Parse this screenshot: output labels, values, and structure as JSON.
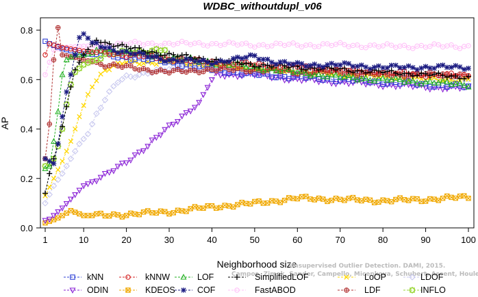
{
  "chart_data": {
    "type": "line",
    "title": "WDBC_withoutdupl_v06",
    "xlabel": "Neighborhood size",
    "ylabel": "AP",
    "xlim": [
      1,
      100
    ],
    "ylim": [
      0,
      0.85
    ],
    "xticks": [
      1,
      10,
      20,
      30,
      40,
      50,
      60,
      70,
      80,
      90,
      100
    ],
    "yticks": [
      0.0,
      0.2,
      0.4,
      0.6,
      0.8
    ],
    "grid": false,
    "legend_position": "bottom",
    "series": [
      {
        "name": "kNN",
        "color": "#2c3fd6",
        "marker": "square",
        "kmax": 100,
        "points": [
          [
            1,
            0.755
          ],
          [
            2,
            0.745
          ],
          [
            5,
            0.725
          ],
          [
            10,
            0.705
          ],
          [
            20,
            0.69
          ],
          [
            30,
            0.67
          ],
          [
            40,
            0.64
          ],
          [
            50,
            0.62
          ],
          [
            60,
            0.61
          ],
          [
            70,
            0.6
          ],
          [
            80,
            0.59
          ],
          [
            90,
            0.58
          ],
          [
            100,
            0.57
          ]
        ]
      },
      {
        "name": "kNNW",
        "color": "#d42020",
        "marker": "circle",
        "kmax": 100,
        "points": [
          [
            1,
            0.7
          ],
          [
            2,
            0.745
          ],
          [
            5,
            0.73
          ],
          [
            10,
            0.715
          ],
          [
            20,
            0.7
          ],
          [
            30,
            0.685
          ],
          [
            40,
            0.67
          ],
          [
            50,
            0.66
          ],
          [
            60,
            0.65
          ],
          [
            70,
            0.64
          ],
          [
            80,
            0.63
          ],
          [
            90,
            0.62
          ],
          [
            100,
            0.615
          ]
        ]
      },
      {
        "name": "LOF",
        "color": "#22b022",
        "marker": "triangle-up",
        "kmax": 100,
        "points": [
          [
            1,
            0.24
          ],
          [
            2,
            0.25
          ],
          [
            3,
            0.35
          ],
          [
            4,
            0.47
          ],
          [
            5,
            0.62
          ],
          [
            6,
            0.68
          ],
          [
            8,
            0.7
          ],
          [
            10,
            0.7
          ],
          [
            15,
            0.72
          ],
          [
            20,
            0.71
          ],
          [
            30,
            0.69
          ],
          [
            40,
            0.67
          ],
          [
            50,
            0.65
          ],
          [
            60,
            0.63
          ],
          [
            70,
            0.61
          ],
          [
            80,
            0.6
          ],
          [
            90,
            0.59
          ],
          [
            100,
            0.58
          ]
        ]
      },
      {
        "name": "SimplifiedLOF",
        "color": "#000000",
        "marker": "plus",
        "kmax": 100,
        "points": [
          [
            1,
            0.14
          ],
          [
            2,
            0.22
          ],
          [
            3,
            0.28
          ],
          [
            4,
            0.34
          ],
          [
            5,
            0.41
          ],
          [
            6,
            0.49
          ],
          [
            7,
            0.57
          ],
          [
            8,
            0.64
          ],
          [
            10,
            0.7
          ],
          [
            13,
            0.765
          ],
          [
            15,
            0.75
          ],
          [
            20,
            0.73
          ],
          [
            30,
            0.7
          ],
          [
            40,
            0.68
          ],
          [
            50,
            0.66
          ],
          [
            60,
            0.65
          ],
          [
            70,
            0.64
          ],
          [
            80,
            0.63
          ],
          [
            90,
            0.62
          ],
          [
            100,
            0.61
          ]
        ]
      },
      {
        "name": "LoOP",
        "color": "#ffd700",
        "marker": "x",
        "kmax": 100,
        "points": [
          [
            1,
            0.13
          ],
          [
            3,
            0.2
          ],
          [
            5,
            0.27
          ],
          [
            7,
            0.35
          ],
          [
            9,
            0.45
          ],
          [
            11,
            0.54
          ],
          [
            13,
            0.6
          ],
          [
            15,
            0.64
          ],
          [
            20,
            0.67
          ],
          [
            30,
            0.67
          ],
          [
            40,
            0.66
          ],
          [
            50,
            0.64
          ],
          [
            60,
            0.63
          ],
          [
            70,
            0.62
          ],
          [
            80,
            0.61
          ],
          [
            90,
            0.6
          ],
          [
            100,
            0.6
          ]
        ]
      },
      {
        "name": "LDOF",
        "color": "#c8c8ef",
        "marker": "diamond",
        "kmax": 100,
        "points": [
          [
            1,
            0.1
          ],
          [
            3,
            0.17
          ],
          [
            5,
            0.22
          ],
          [
            7,
            0.28
          ],
          [
            9,
            0.34
          ],
          [
            11,
            0.38
          ],
          [
            13,
            0.46
          ],
          [
            15,
            0.52
          ],
          [
            18,
            0.59
          ],
          [
            20,
            0.61
          ],
          [
            25,
            0.63
          ],
          [
            30,
            0.64
          ],
          [
            40,
            0.65
          ],
          [
            50,
            0.65
          ],
          [
            60,
            0.64
          ],
          [
            70,
            0.63
          ],
          [
            80,
            0.62
          ],
          [
            90,
            0.61
          ],
          [
            100,
            0.6
          ]
        ]
      },
      {
        "name": "ODIN",
        "color": "#8a22d6",
        "marker": "triangle-down",
        "kmax": 100,
        "points": [
          [
            1,
            0.03
          ],
          [
            2,
            0.035
          ],
          [
            5,
            0.08
          ],
          [
            10,
            0.17
          ],
          [
            15,
            0.21
          ],
          [
            20,
            0.27
          ],
          [
            25,
            0.33
          ],
          [
            30,
            0.41
          ],
          [
            35,
            0.48
          ],
          [
            37,
            0.5
          ],
          [
            39,
            0.57
          ],
          [
            41,
            0.62
          ],
          [
            50,
            0.62
          ],
          [
            60,
            0.6
          ],
          [
            70,
            0.59
          ],
          [
            80,
            0.58
          ],
          [
            90,
            0.57
          ],
          [
            100,
            0.565
          ]
        ]
      },
      {
        "name": "KDEOS",
        "color": "#f0a800",
        "marker": "square-x",
        "kmax": 100,
        "points": [
          [
            1,
            0.02
          ],
          [
            4,
            0.04
          ],
          [
            7,
            0.07
          ],
          [
            10,
            0.05
          ],
          [
            15,
            0.05
          ],
          [
            20,
            0.055
          ],
          [
            30,
            0.065
          ],
          [
            40,
            0.085
          ],
          [
            50,
            0.1
          ],
          [
            55,
            0.11
          ],
          [
            60,
            0.12
          ],
          [
            70,
            0.115
          ],
          [
            80,
            0.11
          ],
          [
            90,
            0.115
          ],
          [
            100,
            0.125
          ]
        ]
      },
      {
        "name": "COF",
        "color": "#1a1a80",
        "marker": "asterisk",
        "kmax": 100,
        "points": [
          [
            1,
            0.28
          ],
          [
            2,
            0.27
          ],
          [
            3,
            0.26
          ],
          [
            4,
            0.34
          ],
          [
            5,
            0.45
          ],
          [
            6,
            0.55
          ],
          [
            7,
            0.62
          ],
          [
            8,
            0.7
          ],
          [
            9,
            0.77
          ],
          [
            10,
            0.785
          ],
          [
            12,
            0.75
          ],
          [
            15,
            0.73
          ],
          [
            20,
            0.71
          ],
          [
            30,
            0.68
          ],
          [
            40,
            0.67
          ],
          [
            45,
            0.68
          ],
          [
            50,
            0.695
          ],
          [
            55,
            0.67
          ],
          [
            60,
            0.66
          ],
          [
            70,
            0.66
          ],
          [
            80,
            0.65
          ],
          [
            90,
            0.65
          ],
          [
            100,
            0.65
          ]
        ]
      },
      {
        "name": "FastABOD",
        "color": "#ffc2f8",
        "marker": "circle-dot",
        "kmax": 100,
        "points": [
          [
            1,
            0.62
          ],
          [
            3,
            0.72
          ],
          [
            5,
            0.73
          ],
          [
            10,
            0.735
          ],
          [
            20,
            0.745
          ],
          [
            30,
            0.745
          ],
          [
            40,
            0.745
          ],
          [
            50,
            0.74
          ],
          [
            60,
            0.74
          ],
          [
            70,
            0.74
          ],
          [
            80,
            0.735
          ],
          [
            90,
            0.735
          ],
          [
            100,
            0.735
          ]
        ]
      },
      {
        "name": "LDF",
        "color": "#b03030",
        "marker": "circle-plus",
        "kmax": 100,
        "points": [
          [
            1,
            0.28
          ],
          [
            2,
            0.42
          ],
          [
            3,
            0.68
          ],
          [
            4,
            0.81
          ],
          [
            5,
            0.7
          ],
          [
            8,
            0.69
          ],
          [
            10,
            0.68
          ],
          [
            15,
            0.66
          ],
          [
            20,
            0.65
          ],
          [
            30,
            0.63
          ],
          [
            40,
            0.64
          ],
          [
            50,
            0.64
          ],
          [
            60,
            0.63
          ],
          [
            70,
            0.63
          ],
          [
            80,
            0.62
          ],
          [
            90,
            0.62
          ],
          [
            100,
            0.62
          ]
        ]
      },
      {
        "name": "INFLO",
        "color": "#99d633",
        "marker": "square-diamond",
        "kmax": 29,
        "points": [
          [
            1,
            0.25
          ],
          [
            2,
            0.26
          ],
          [
            3,
            0.28
          ],
          [
            4,
            0.33
          ],
          [
            5,
            0.4
          ],
          [
            6,
            0.5
          ],
          [
            7,
            0.58
          ],
          [
            8,
            0.63
          ],
          [
            10,
            0.66
          ],
          [
            15,
            0.7
          ],
          [
            20,
            0.71
          ],
          [
            25,
            0.715
          ],
          [
            29,
            0.72
          ]
        ]
      }
    ],
    "legend_order": [
      [
        "kNN",
        "kNNW",
        "LOF",
        "SimplifiedLOF",
        "LoOP",
        "LDOF"
      ],
      [
        "ODIN",
        "KDEOS",
        "COF",
        "FastABOD",
        "LDF",
        "INFLO"
      ]
    ]
  },
  "watermark": {
    "line1": "Unsupervised Outlier Detection. DAMI, 2015.",
    "line2": "Campos, Zimek, Sander, Campello, Micenkova, Schubert, Assent, Houle"
  }
}
